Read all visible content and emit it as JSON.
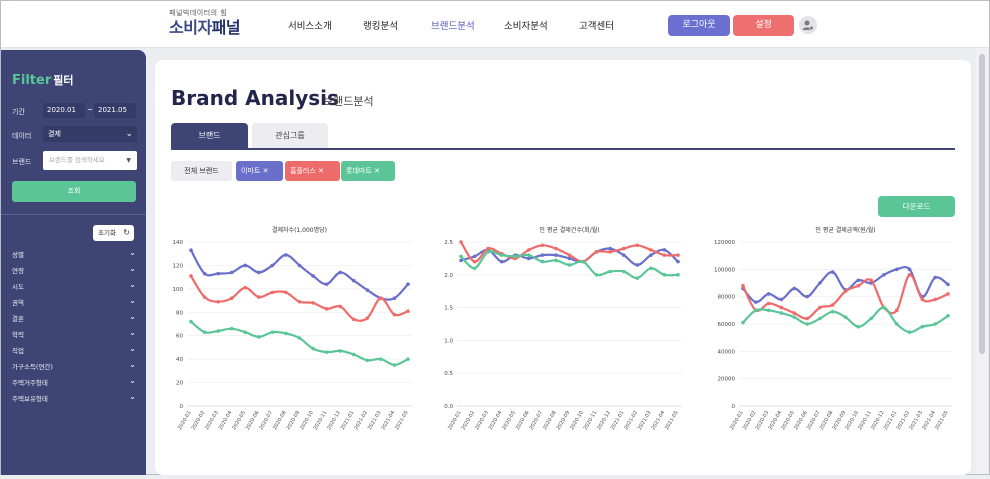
{
  "header": {
    "logo_subtitle": "패널빅데이터의 힘",
    "logo_main": "소비자",
    "logo_accent": "패널",
    "nav": [
      "서비스소개",
      "랭킹분석",
      "브랜드분석",
      "소비자분석",
      "고객센터"
    ],
    "active_nav": "브랜드분석",
    "logout_label": "로그아웃",
    "settings_label": "설정",
    "colors": {
      "accent": "#6a6fd0",
      "danger": "#ee6f6f"
    }
  },
  "sidebar": {
    "title_en": "Filter",
    "title_ko": "필터",
    "period_label": "기간",
    "period_start": "2020.01",
    "period_end": "2021.05",
    "data_label": "데이터",
    "data_value": "결제",
    "brand_label": "브랜드",
    "brand_placeholder": "브랜드를 검색하세요",
    "search_button": "조회",
    "reset_button": "초기화",
    "filters": [
      "성별",
      "연령",
      "시도",
      "권역",
      "결혼",
      "학력",
      "직업",
      "가구소득(연간)",
      "주택거주형태",
      "주택보유형태"
    ]
  },
  "main": {
    "title": "Brand Analysis",
    "subtitle": "브랜드분석",
    "tabs": [
      "브랜드",
      "관심그룹"
    ],
    "all_brands_chip": "전체 브랜드",
    "brand_chips": [
      {
        "label": "이마트",
        "color": "#6a6fc9"
      },
      {
        "label": "홈플러스",
        "color": "#ee6b6b"
      },
      {
        "label": "롯데마트",
        "color": "#5bc597"
      }
    ],
    "download_button": "다운로드"
  },
  "chart_data": [
    {
      "type": "line",
      "title": "결제자수(1,000명당)",
      "x": [
        "2020-01",
        "2020-02",
        "2020-03",
        "2020-04",
        "2020-05",
        "2020-06",
        "2020-07",
        "2020-08",
        "2020-09",
        "2020-10",
        "2020-11",
        "2020-12",
        "2021-01",
        "2021-02",
        "2021-03",
        "2021-04",
        "2021-05"
      ],
      "ylim": [
        0,
        140
      ],
      "yticks": [
        0,
        20,
        40,
        60,
        80,
        100,
        120,
        140
      ],
      "series": [
        {
          "name": "이마트",
          "color": "#6a6fc9",
          "values": [
            133,
            113,
            113,
            114,
            120,
            114,
            120,
            129,
            120,
            111,
            104,
            114,
            107,
            99,
            92,
            92,
            104
          ]
        },
        {
          "name": "홈플러스",
          "color": "#ee6b6b",
          "values": [
            111,
            93,
            89,
            92,
            101,
            93,
            97,
            97,
            89,
            88,
            83,
            85,
            74,
            75,
            92,
            78,
            81
          ]
        },
        {
          "name": "롯데마트",
          "color": "#5bc597",
          "values": [
            72,
            63,
            64,
            66,
            63,
            59,
            63,
            62,
            58,
            49,
            46,
            47,
            44,
            39,
            40,
            35,
            40
          ]
        }
      ]
    },
    {
      "type": "line",
      "title": "인 평균 결제건수(회/월)",
      "x": [
        "2020-01",
        "2020-02",
        "2020-03",
        "2020-04",
        "2020-05",
        "2020-06",
        "2020-07",
        "2020-08",
        "2020-09",
        "2020-10",
        "2020-11",
        "2020-12",
        "2021-01",
        "2021-02",
        "2021-03",
        "2021-04",
        "2021-05"
      ],
      "ylim": [
        0,
        2.5
      ],
      "yticks": [
        0.0,
        0.5,
        1.0,
        1.5,
        2.0,
        2.5
      ],
      "series": [
        {
          "name": "이마트",
          "color": "#6a6fc9",
          "values": [
            2.22,
            2.28,
            2.38,
            2.2,
            2.3,
            2.25,
            2.3,
            2.3,
            2.25,
            2.2,
            2.35,
            2.4,
            2.3,
            2.15,
            2.3,
            2.38,
            2.2
          ]
        },
        {
          "name": "홈플러스",
          "color": "#ee6b6b",
          "values": [
            2.5,
            2.2,
            2.4,
            2.32,
            2.25,
            2.38,
            2.45,
            2.4,
            2.3,
            2.2,
            2.35,
            2.35,
            2.4,
            2.45,
            2.38,
            2.3,
            2.3
          ]
        },
        {
          "name": "롯데마트",
          "color": "#5bc597",
          "values": [
            2.28,
            2.1,
            2.35,
            2.3,
            2.28,
            2.3,
            2.2,
            2.22,
            2.15,
            2.2,
            2.0,
            2.05,
            2.05,
            1.95,
            2.1,
            2.0,
            2.0
          ]
        }
      ]
    },
    {
      "type": "line",
      "title": "인 평균 결제금액(원/월)",
      "x": [
        "2020-01",
        "2020-02",
        "2020-03",
        "2020-04",
        "2020-05",
        "2020-06",
        "2020-07",
        "2020-08",
        "2020-09",
        "2020-10",
        "2020-11",
        "2020-12",
        "2021-01",
        "2021-02",
        "2021-03",
        "2021-04",
        "2021-05"
      ],
      "ylim": [
        0,
        120000
      ],
      "yticks": [
        0,
        20000,
        40000,
        60000,
        80000,
        100000,
        120000
      ],
      "series": [
        {
          "name": "이마트",
          "color": "#6a6fc9",
          "values": [
            86000,
            76000,
            82000,
            78000,
            86000,
            80000,
            90000,
            98000,
            85000,
            92000,
            90000,
            96000,
            100000,
            100000,
            80000,
            94000,
            89000
          ]
        },
        {
          "name": "홈플러스",
          "color": "#ee6b6b",
          "values": [
            88000,
            70000,
            75000,
            72000,
            68000,
            64000,
            72000,
            74000,
            84000,
            88000,
            92000,
            72000,
            70000,
            96000,
            78000,
            78000,
            82000
          ]
        },
        {
          "name": "롯데마트",
          "color": "#5bc597",
          "values": [
            61000,
            70000,
            70000,
            68000,
            65000,
            60000,
            64000,
            69000,
            65000,
            58000,
            64000,
            72000,
            60000,
            54000,
            58000,
            60000,
            66000
          ]
        }
      ]
    }
  ]
}
